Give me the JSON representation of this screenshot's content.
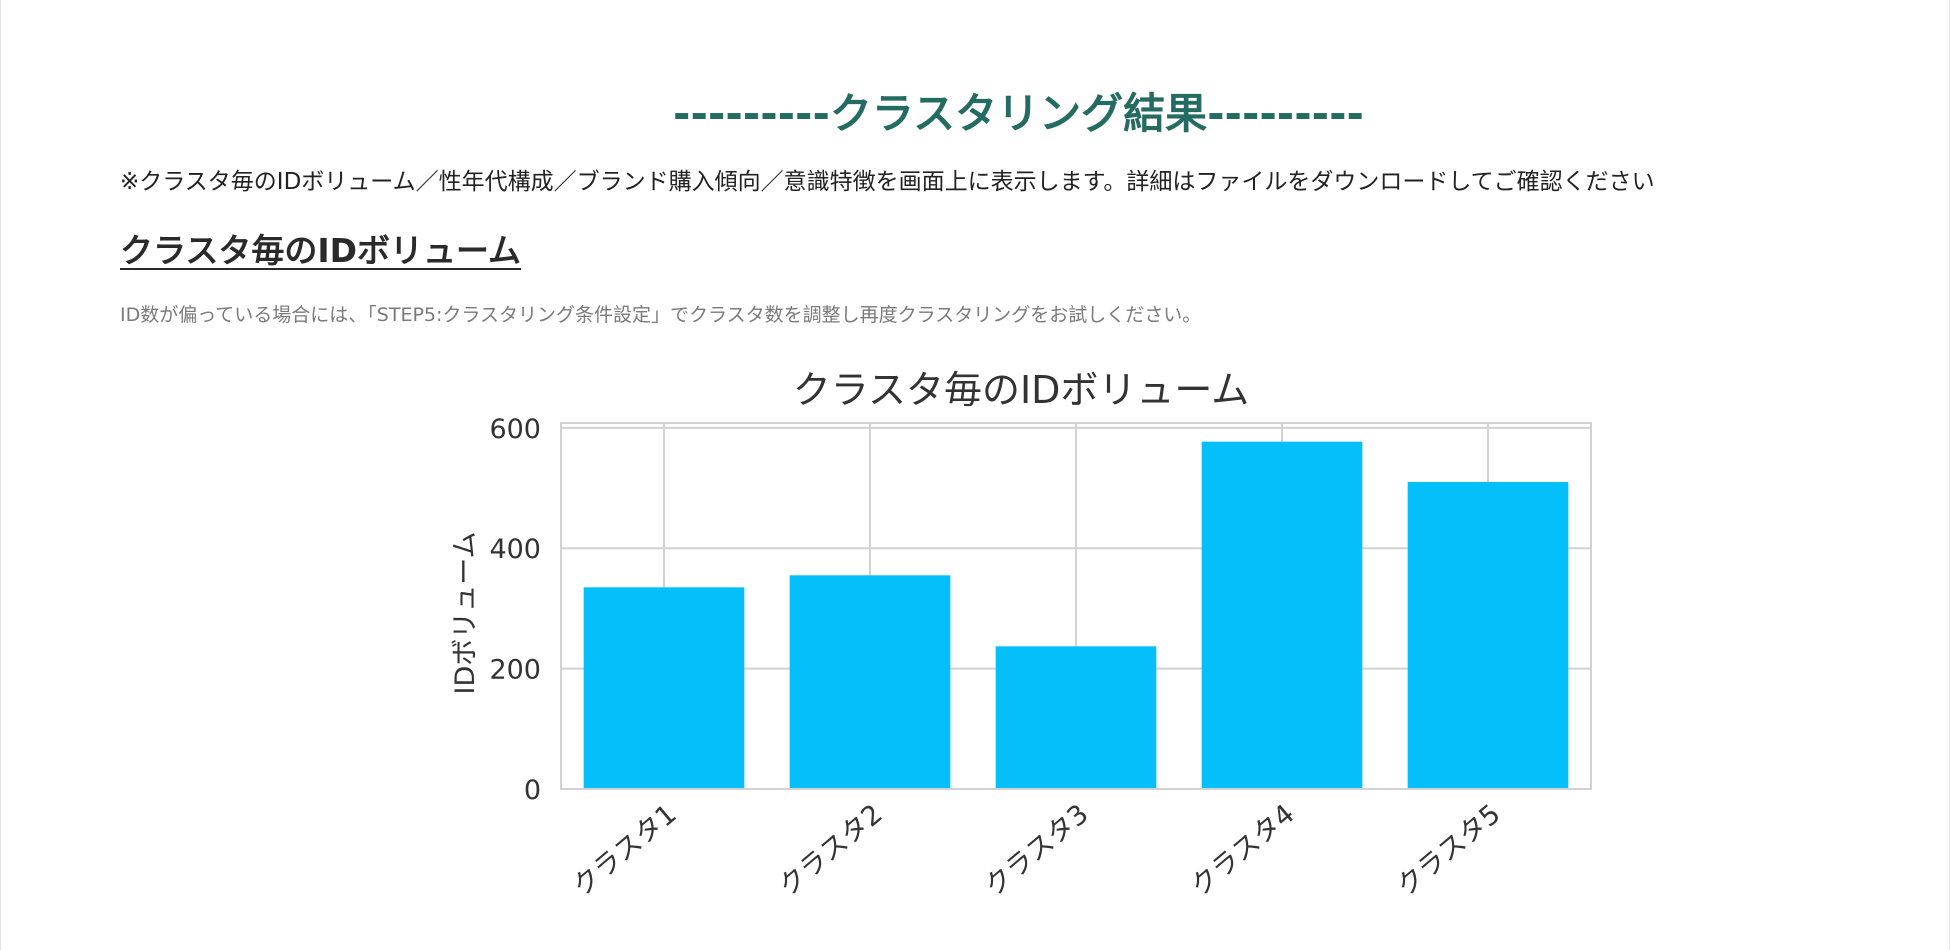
{
  "page": {
    "result_title": "---------クラスタリング結果---------",
    "notice": "※クラスタ毎のIDボリューム／性年代構成／ブランド購入傾向／意識特徴を画面上に表示します。詳細はファイルをダウンロードしてご確認ください",
    "section_heading": "クラスタ毎のIDボリューム",
    "hint": "ID数が偏っている場合には、「STEP5:クラスタリング条件設定」でクラスタ数を調整し再度クラスタリングをお試しください。"
  },
  "colors": {
    "title": "#246b62",
    "bar": "#05bffb",
    "grid": "#d2d2d2"
  },
  "chart_data": {
    "type": "bar",
    "title": "クラスタ毎のIDボリューム",
    "xlabel": "",
    "ylabel": "IDボリューム",
    "categories": [
      "クラスタ1",
      "クラスタ2",
      "クラスタ3",
      "クラスタ4",
      "クラスタ5"
    ],
    "values": [
      335,
      355,
      237,
      577,
      510
    ],
    "ylim": [
      0,
      600
    ],
    "yticks": [
      0,
      200,
      400,
      600
    ],
    "grid": true,
    "legend": "none"
  }
}
